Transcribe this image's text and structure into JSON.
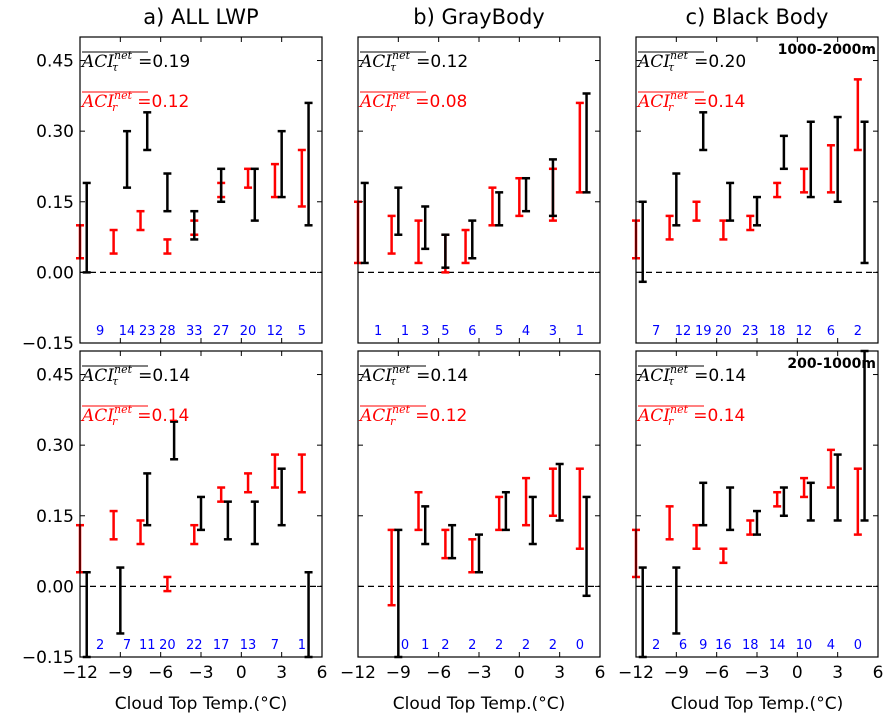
{
  "colors": {
    "tau": "#000000",
    "rc": "#ff0000",
    "count": "#0000ff",
    "zero_line": "#000000"
  },
  "chart_data": {
    "type": "errorbar",
    "shared": {
      "x_label": "Cloud Top Temp.(°C)",
      "x_ticks": [
        "−12",
        "−9",
        "−6",
        "−3",
        "0",
        "3",
        "6"
      ],
      "y_ticks": [
        "−0.15",
        "0.00",
        "0.15",
        "0.30",
        "0.45"
      ],
      "xlim": [
        -12,
        6
      ],
      "ylim": [
        -0.15,
        0.5
      ],
      "reference_line": {
        "y": 0,
        "style": "dashed"
      },
      "series": [
        "tau",
        "rc"
      ]
    },
    "panels": [
      {
        "title": "a) ALL LWP",
        "row": 0,
        "col": 0,
        "height_label": "",
        "stat_tau_value": "=0.19",
        "stat_rc_value": "=0.12",
        "counts": [
          "9",
          "14",
          "23",
          "28",
          "33",
          "27",
          "20",
          "12",
          "5"
        ],
        "count_x": [
          -10.5,
          -8.5,
          -7,
          -5.5,
          -3.5,
          -1.5,
          0.5,
          2.5,
          4.5
        ],
        "tau": [
          [
            -11.5,
            0.0,
            0.19
          ],
          [
            -8.5,
            0.18,
            0.3
          ],
          [
            -7,
            0.26,
            0.34
          ],
          [
            -5.5,
            0.13,
            0.21
          ],
          [
            -3.5,
            0.07,
            0.13
          ],
          [
            -1.5,
            0.15,
            0.22
          ],
          [
            1,
            0.11,
            0.22
          ],
          [
            3,
            0.16,
            0.3
          ],
          [
            5,
            0.1,
            0.36
          ]
        ],
        "rc": [
          [
            -12,
            0.03,
            0.1
          ],
          [
            -9.5,
            0.04,
            0.09
          ],
          [
            -7.5,
            0.09,
            0.13
          ],
          [
            -5.5,
            0.04,
            0.07
          ],
          [
            -3.5,
            0.08,
            0.11
          ],
          [
            -1.5,
            0.16,
            0.19
          ],
          [
            0.5,
            0.18,
            0.22
          ],
          [
            2.5,
            0.16,
            0.23
          ],
          [
            4.5,
            0.14,
            0.26
          ]
        ]
      },
      {
        "title": "b) GrayBody",
        "row": 0,
        "col": 1,
        "height_label": "",
        "stat_tau_value": "=0.12",
        "stat_rc_value": "=0.08",
        "counts": [
          "1",
          "1",
          "3",
          "5",
          "6",
          "5",
          "4",
          "3",
          "1"
        ],
        "count_x": [
          -10.5,
          -8.5,
          -7,
          -5.5,
          -3.5,
          -1.5,
          0.5,
          2.5,
          4.5
        ],
        "tau": [
          [
            -11.5,
            0.02,
            0.19
          ],
          [
            -9,
            0.08,
            0.18
          ],
          [
            -7,
            0.05,
            0.14
          ],
          [
            -5.5,
            0.01,
            0.08
          ],
          [
            -3.5,
            0.03,
            0.11
          ],
          [
            -1.5,
            0.1,
            0.17
          ],
          [
            0.5,
            0.13,
            0.2
          ],
          [
            2.5,
            0.12,
            0.24
          ],
          [
            5,
            0.17,
            0.38
          ]
        ],
        "rc": [
          [
            -12,
            0.02,
            0.15
          ],
          [
            -9.5,
            0.04,
            0.12
          ],
          [
            -7.5,
            0.02,
            0.11
          ],
          [
            -5.5,
            0.0,
            0.08
          ],
          [
            -4,
            0.02,
            0.09
          ],
          [
            -2,
            0.1,
            0.18
          ],
          [
            0,
            0.12,
            0.2
          ],
          [
            2.5,
            0.11,
            0.22
          ],
          [
            4.5,
            0.17,
            0.36
          ]
        ]
      },
      {
        "title": "c) Black Body",
        "row": 0,
        "col": 2,
        "height_label": "1000-2000m",
        "stat_tau_value": "=0.20",
        "stat_rc_value": "=0.14",
        "counts": [
          "7",
          "12",
          "19",
          "20",
          "23",
          "18",
          "12",
          "6",
          "2"
        ],
        "count_x": [
          -10.5,
          -8.5,
          -7,
          -5.5,
          -3.5,
          -1.5,
          0.5,
          2.5,
          4.5
        ],
        "tau": [
          [
            -11.5,
            -0.02,
            0.15
          ],
          [
            -9,
            0.1,
            0.21
          ],
          [
            -7,
            0.26,
            0.34
          ],
          [
            -5,
            0.11,
            0.19
          ],
          [
            -3,
            0.1,
            0.16
          ],
          [
            -1,
            0.22,
            0.29
          ],
          [
            1,
            0.16,
            0.32
          ],
          [
            3,
            0.15,
            0.33
          ],
          [
            5,
            0.02,
            0.32
          ]
        ],
        "rc": [
          [
            -12,
            0.03,
            0.11
          ],
          [
            -9.5,
            0.07,
            0.12
          ],
          [
            -7.5,
            0.11,
            0.15
          ],
          [
            -5.5,
            0.07,
            0.11
          ],
          [
            -3.5,
            0.09,
            0.12
          ],
          [
            -1.5,
            0.16,
            0.19
          ],
          [
            0.5,
            0.17,
            0.22
          ],
          [
            2.5,
            0.17,
            0.27
          ],
          [
            4.5,
            0.26,
            0.41
          ]
        ]
      },
      {
        "title": "",
        "row": 1,
        "col": 0,
        "height_label": "",
        "stat_tau_value": "=0.14",
        "stat_rc_value": "=0.14",
        "counts": [
          "2",
          "7",
          "11",
          "20",
          "22",
          "17",
          "13",
          "7",
          "1"
        ],
        "count_x": [
          -10.5,
          -8.5,
          -7,
          -5.5,
          -3.5,
          -1.5,
          0.5,
          2.5,
          4.5
        ],
        "tau": [
          [
            -11.5,
            -0.15,
            0.03
          ],
          [
            -9,
            -0.1,
            0.04
          ],
          [
            -7,
            0.13,
            0.24
          ],
          [
            -5,
            0.27,
            0.35
          ],
          [
            -3,
            0.12,
            0.19
          ],
          [
            -1,
            0.1,
            0.18
          ],
          [
            1,
            0.09,
            0.18
          ],
          [
            3,
            0.13,
            0.25
          ],
          [
            5,
            -0.15,
            0.03
          ]
        ],
        "rc": [
          [
            -12,
            0.03,
            0.13
          ],
          [
            -9.5,
            0.1,
            0.16
          ],
          [
            -7.5,
            0.09,
            0.14
          ],
          [
            -5.5,
            -0.01,
            0.02
          ],
          [
            -3.5,
            0.09,
            0.13
          ],
          [
            -1.5,
            0.18,
            0.21
          ],
          [
            0.5,
            0.2,
            0.24
          ],
          [
            2.5,
            0.21,
            0.28
          ],
          [
            4.5,
            0.2,
            0.28
          ]
        ]
      },
      {
        "title": "",
        "row": 1,
        "col": 1,
        "height_label": "",
        "stat_tau_value": "=0.14",
        "stat_rc_value": "=0.12",
        "counts": [
          "0",
          "1",
          "2",
          "2",
          "2",
          "2",
          "2",
          "0"
        ],
        "count_x": [
          -8.5,
          -7,
          -5.5,
          -3.5,
          -1.5,
          0.5,
          2.5,
          4.5
        ],
        "tau": [
          [
            -9,
            -0.15,
            0.12
          ],
          [
            -7,
            0.09,
            0.17
          ],
          [
            -5,
            0.06,
            0.13
          ],
          [
            -3,
            0.03,
            0.11
          ],
          [
            -1,
            0.12,
            0.2
          ],
          [
            1,
            0.09,
            0.19
          ],
          [
            3,
            0.14,
            0.26
          ],
          [
            5,
            -0.02,
            0.19
          ]
        ],
        "rc": [
          [
            -9.5,
            -0.04,
            0.12
          ],
          [
            -7.5,
            0.12,
            0.2
          ],
          [
            -5.5,
            0.06,
            0.12
          ],
          [
            -3.5,
            0.03,
            0.1
          ],
          [
            -1.5,
            0.12,
            0.19
          ],
          [
            0.5,
            0.13,
            0.23
          ],
          [
            2.5,
            0.15,
            0.25
          ],
          [
            4.5,
            0.08,
            0.25
          ]
        ]
      },
      {
        "title": "",
        "row": 1,
        "col": 2,
        "height_label": "200-1000m",
        "stat_tau_value": "=0.14",
        "stat_rc_value": "=0.14",
        "counts": [
          "2",
          "6",
          "9",
          "16",
          "18",
          "14",
          "10",
          "4",
          "0"
        ],
        "count_x": [
          -10.5,
          -8.5,
          -7,
          -5.5,
          -3.5,
          -1.5,
          0.5,
          2.5,
          4.5
        ],
        "tau": [
          [
            -11.5,
            -0.15,
            0.04
          ],
          [
            -9,
            -0.1,
            0.04
          ],
          [
            -7,
            0.13,
            0.22
          ],
          [
            -5,
            0.12,
            0.21
          ],
          [
            -3,
            0.11,
            0.16
          ],
          [
            -1,
            0.15,
            0.21
          ],
          [
            1,
            0.14,
            0.22
          ],
          [
            3,
            0.14,
            0.28
          ],
          [
            5,
            0.14,
            0.5
          ]
        ],
        "rc": [
          [
            -12,
            0.02,
            0.12
          ],
          [
            -9.5,
            0.1,
            0.17
          ],
          [
            -7.5,
            0.08,
            0.13
          ],
          [
            -5.5,
            0.05,
            0.08
          ],
          [
            -3.5,
            0.11,
            0.14
          ],
          [
            -1.5,
            0.17,
            0.2
          ],
          [
            0.5,
            0.19,
            0.23
          ],
          [
            2.5,
            0.21,
            0.29
          ],
          [
            4.5,
            0.11,
            0.25
          ]
        ]
      }
    ]
  }
}
